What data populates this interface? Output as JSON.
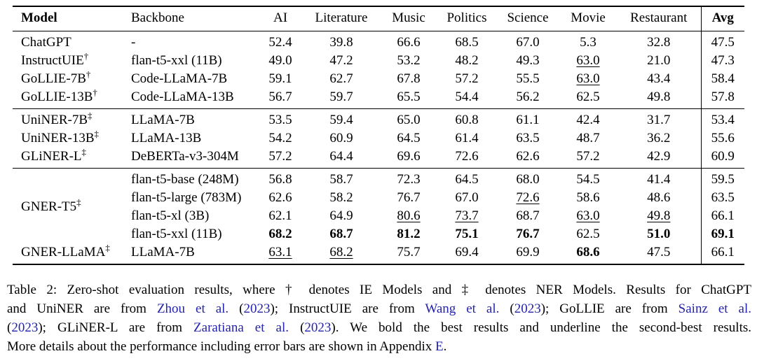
{
  "page": {
    "background": "#ffffff",
    "text_color": "#000000",
    "link_color": "#2323ac"
  },
  "table": {
    "columns": [
      {
        "key": "model",
        "label": "Model",
        "bold": true,
        "align": "l",
        "divider": false
      },
      {
        "key": "backbone",
        "label": "Backbone",
        "bold": false,
        "align": "l",
        "divider": false
      },
      {
        "key": "ai",
        "label": "AI",
        "bold": false,
        "align": "c",
        "divider": false
      },
      {
        "key": "literature",
        "label": "Literature",
        "bold": false,
        "align": "c",
        "divider": false
      },
      {
        "key": "music",
        "label": "Music",
        "bold": false,
        "align": "c",
        "divider": false
      },
      {
        "key": "politics",
        "label": "Politics",
        "bold": false,
        "align": "c",
        "divider": false
      },
      {
        "key": "science",
        "label": "Science",
        "bold": false,
        "align": "c",
        "divider": false
      },
      {
        "key": "movie",
        "label": "Movie",
        "bold": false,
        "align": "c",
        "divider": false
      },
      {
        "key": "restaurant",
        "label": "Restaurant",
        "bold": false,
        "align": "c",
        "divider": false
      },
      {
        "key": "avg",
        "label": "Avg",
        "bold": true,
        "align": "c",
        "divider": true
      }
    ],
    "groups": [
      {
        "rows": [
          {
            "model": "ChatGPT",
            "sup": "",
            "backbone": "-",
            "cells": [
              "52.4",
              "39.8",
              "66.6",
              "68.5",
              "67.0",
              "5.3",
              "32.8",
              "47.5"
            ],
            "styles": [
              "",
              "",
              "",
              "",
              "",
              "",
              "",
              ""
            ]
          },
          {
            "model": "InstructUIE",
            "sup": "†",
            "backbone": "flan-t5-xxl (11B)",
            "cells": [
              "49.0",
              "47.2",
              "53.2",
              "48.2",
              "49.3",
              "63.0",
              "21.0",
              "47.3"
            ],
            "styles": [
              "",
              "",
              "",
              "",
              "",
              "u",
              "",
              ""
            ]
          },
          {
            "model": "GoLLIE-7B",
            "sup": "†",
            "backbone": "Code-LLaMA-7B",
            "cells": [
              "59.1",
              "62.7",
              "67.8",
              "57.2",
              "55.5",
              "63.0",
              "43.4",
              "58.4"
            ],
            "styles": [
              "",
              "",
              "",
              "",
              "",
              "u",
              "",
              ""
            ]
          },
          {
            "model": "GoLLIE-13B",
            "sup": "†",
            "backbone": "Code-LLaMA-13B",
            "cells": [
              "56.7",
              "59.7",
              "65.5",
              "54.4",
              "56.2",
              "62.5",
              "49.8",
              "57.8"
            ],
            "styles": [
              "",
              "",
              "",
              "",
              "",
              "",
              "",
              ""
            ]
          }
        ]
      },
      {
        "rows": [
          {
            "model": "UniNER-7B",
            "sup": "‡",
            "backbone": "LLaMA-7B",
            "cells": [
              "53.5",
              "59.4",
              "65.0",
              "60.8",
              "61.1",
              "42.4",
              "31.7",
              "53.4"
            ],
            "styles": [
              "",
              "",
              "",
              "",
              "",
              "",
              "",
              ""
            ]
          },
          {
            "model": "UniNER-13B",
            "sup": "‡",
            "backbone": "LLaMA-13B",
            "cells": [
              "54.2",
              "60.9",
              "64.5",
              "61.4",
              "63.5",
              "48.7",
              "36.2",
              "55.6"
            ],
            "styles": [
              "",
              "",
              "",
              "",
              "",
              "",
              "",
              ""
            ]
          },
          {
            "model": "GLiNER-L",
            "sup": "‡",
            "backbone": "DeBERTa-v3-304M",
            "cells": [
              "57.2",
              "64.4",
              "69.6",
              "72.6",
              "62.6",
              "57.2",
              "42.9",
              "60.9"
            ],
            "styles": [
              "",
              "",
              "",
              "",
              "",
              "",
              "",
              ""
            ]
          }
        ]
      },
      {
        "multirow": {
          "name": "GNER-T5",
          "sup": "‡",
          "span": 4
        },
        "rows": [
          {
            "model": null,
            "sup": "",
            "backbone": "flan-t5-base (248M)",
            "cells": [
              "56.8",
              "58.7",
              "72.3",
              "64.5",
              "68.0",
              "54.5",
              "41.4",
              "59.5"
            ],
            "styles": [
              "",
              "",
              "",
              "",
              "",
              "",
              "",
              ""
            ]
          },
          {
            "model": null,
            "sup": "",
            "backbone": "flan-t5-large (783M)",
            "cells": [
              "62.6",
              "58.2",
              "76.7",
              "67.0",
              "72.6",
              "58.6",
              "48.6",
              "63.5"
            ],
            "styles": [
              "",
              "",
              "",
              "",
              "u",
              "",
              "",
              ""
            ]
          },
          {
            "model": null,
            "sup": "",
            "backbone": "flan-t5-xl (3B)",
            "cells": [
              "62.1",
              "64.9",
              "80.6",
              "73.7",
              "68.7",
              "63.0",
              "49.8",
              "66.1"
            ],
            "styles": [
              "",
              "",
              "u",
              "u",
              "",
              "u",
              "u",
              ""
            ]
          },
          {
            "model": null,
            "sup": "",
            "backbone": "flan-t5-xxl (11B)",
            "cells": [
              "68.2",
              "68.7",
              "81.2",
              "75.1",
              "76.7",
              "62.5",
              "51.0",
              "69.1"
            ],
            "styles": [
              "b",
              "b",
              "b",
              "b",
              "b",
              "",
              "b",
              "b"
            ]
          },
          {
            "model": "GNER-LLaMA",
            "sup": "‡",
            "backbone": "LLaMA-7B",
            "cells": [
              "63.1",
              "68.2",
              "75.7",
              "69.4",
              "69.9",
              "68.6",
              "47.5",
              "66.1"
            ],
            "styles": [
              "u",
              "u",
              "",
              "",
              "",
              "b",
              "",
              ""
            ]
          }
        ]
      }
    ]
  },
  "caption": {
    "lines": [
      [
        {
          "t": "Table 2: Zero-shot evaluation results, where † denotes IE Models and ‡ denotes NER Models. Results for ChatGPT",
          "link": false
        }
      ],
      [
        {
          "t": "and UniNER are from ",
          "link": false
        },
        {
          "t": "Zhou et al.",
          "link": true
        },
        {
          "t": " (",
          "link": false
        },
        {
          "t": "2023",
          "link": true
        },
        {
          "t": "); InstructUIE are from ",
          "link": false
        },
        {
          "t": "Wang et al.",
          "link": true
        },
        {
          "t": " (",
          "link": false
        },
        {
          "t": "2023",
          "link": true
        },
        {
          "t": "); GoLLIE are from ",
          "link": false
        },
        {
          "t": "Sainz et al.",
          "link": true
        }
      ],
      [
        {
          "t": "(",
          "link": false
        },
        {
          "t": "2023",
          "link": true
        },
        {
          "t": "); GLiNER-L are from ",
          "link": false
        },
        {
          "t": "Zaratiana et al.",
          "link": true
        },
        {
          "t": " (",
          "link": false
        },
        {
          "t": "2023",
          "link": true
        },
        {
          "t": "). We bold the best results and underline the second-best results.",
          "link": false
        }
      ],
      [
        {
          "t": "More details about the performance including error bars are shown in Appendix ",
          "link": false
        },
        {
          "t": "E",
          "link": true
        },
        {
          "t": ".",
          "link": false
        }
      ]
    ]
  }
}
